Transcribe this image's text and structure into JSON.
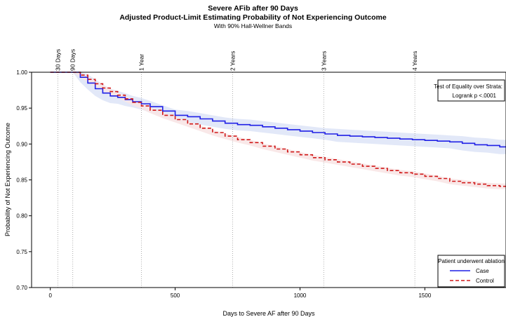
{
  "chart_data": {
    "type": "line",
    "title": "Severe AFib after 90 Days",
    "subtitle": "Adjusted Product-Limit Estimating Probability of Not Experiencing Outcome",
    "subtitle2": "With 90% Hall-Wellner Bands",
    "xlabel": "Days to Severe AF after 90 Days",
    "ylabel": "Probability of Not Experiencing Outcome",
    "xlim": [
      -75,
      1825
    ],
    "ylim": [
      0.7,
      1.0
    ],
    "x_ticks": [
      0,
      500,
      1000,
      1500
    ],
    "x_tick_labels": [
      "0",
      "500",
      "1000",
      "1500"
    ],
    "y_ticks": [
      0.7,
      0.75,
      0.8,
      0.85,
      0.9,
      0.95,
      1.0
    ],
    "y_tick_labels": [
      "0.70",
      "0.75",
      "0.80",
      "0.85",
      "0.90",
      "0.95",
      "1.00"
    ],
    "reference_lines": [
      {
        "x": 30,
        "label": "30 Days"
      },
      {
        "x": 90,
        "label": "90 Days"
      },
      {
        "x": 365,
        "label": "1 Year"
      },
      {
        "x": 730,
        "label": "2 Years"
      },
      {
        "x": 1095,
        "label": "3 Years"
      },
      {
        "x": 1460,
        "label": "4 Years"
      }
    ],
    "test_box": {
      "line1": "Test of Equality over Strata:",
      "line2": "Logrank p <.0001"
    },
    "legend": {
      "title": "Patient underwent ablation",
      "position": "bottom-right"
    },
    "grid": false,
    "series": [
      {
        "name": "Case",
        "color": "#1f1fe6",
        "dash": "solid",
        "band_color": "#dfe6f7",
        "x": [
          0,
          90,
          120,
          150,
          180,
          210,
          240,
          270,
          300,
          330,
          365,
          400,
          450,
          500,
          550,
          600,
          650,
          700,
          750,
          800,
          850,
          900,
          950,
          1000,
          1050,
          1100,
          1150,
          1200,
          1250,
          1300,
          1350,
          1400,
          1450,
          1500,
          1550,
          1600,
          1650,
          1700,
          1750,
          1800,
          1825
        ],
        "y": [
          1.0,
          1.0,
          0.993,
          0.985,
          0.977,
          0.971,
          0.967,
          0.965,
          0.962,
          0.959,
          0.956,
          0.952,
          0.946,
          0.94,
          0.938,
          0.935,
          0.932,
          0.929,
          0.927,
          0.926,
          0.924,
          0.922,
          0.92,
          0.918,
          0.916,
          0.914,
          0.912,
          0.911,
          0.91,
          0.909,
          0.908,
          0.907,
          0.906,
          0.905,
          0.904,
          0.903,
          0.901,
          0.899,
          0.898,
          0.896,
          0.896
        ],
        "upper": [
          1.0,
          1.0,
          1.0,
          0.997,
          0.99,
          0.983,
          0.977,
          0.974,
          0.971,
          0.967,
          0.964,
          0.96,
          0.954,
          0.948,
          0.946,
          0.943,
          0.94,
          0.937,
          0.935,
          0.934,
          0.932,
          0.93,
          0.928,
          0.926,
          0.924,
          0.922,
          0.921,
          0.92,
          0.919,
          0.918,
          0.917,
          0.916,
          0.915,
          0.914,
          0.913,
          0.912,
          0.911,
          0.909,
          0.908,
          0.906,
          0.906
        ],
        "lower": [
          1.0,
          1.0,
          0.986,
          0.976,
          0.967,
          0.961,
          0.957,
          0.956,
          0.953,
          0.951,
          0.948,
          0.944,
          0.938,
          0.932,
          0.93,
          0.927,
          0.924,
          0.921,
          0.919,
          0.918,
          0.916,
          0.914,
          0.912,
          0.91,
          0.908,
          0.906,
          0.903,
          0.902,
          0.901,
          0.9,
          0.899,
          0.898,
          0.897,
          0.896,
          0.895,
          0.894,
          0.891,
          0.889,
          0.888,
          0.886,
          0.886
        ]
      },
      {
        "name": "Control",
        "color": "#d01818",
        "dash": "dashed",
        "band_color": "#f8e6e6",
        "x": [
          0,
          90,
          120,
          150,
          180,
          210,
          240,
          270,
          300,
          330,
          365,
          400,
          450,
          500,
          550,
          600,
          650,
          700,
          750,
          800,
          850,
          900,
          950,
          1000,
          1050,
          1100,
          1150,
          1200,
          1250,
          1300,
          1350,
          1400,
          1450,
          1500,
          1550,
          1600,
          1650,
          1700,
          1750,
          1800,
          1825
        ],
        "y": [
          1.0,
          1.0,
          0.996,
          0.99,
          0.984,
          0.978,
          0.973,
          0.968,
          0.963,
          0.958,
          0.953,
          0.947,
          0.94,
          0.934,
          0.928,
          0.922,
          0.916,
          0.911,
          0.906,
          0.902,
          0.897,
          0.893,
          0.889,
          0.885,
          0.881,
          0.878,
          0.875,
          0.872,
          0.869,
          0.866,
          0.863,
          0.86,
          0.858,
          0.855,
          0.852,
          0.848,
          0.846,
          0.844,
          0.842,
          0.841,
          0.841
        ],
        "upper": [
          1.0,
          1.0,
          0.999,
          0.994,
          0.988,
          0.982,
          0.977,
          0.972,
          0.967,
          0.962,
          0.957,
          0.951,
          0.944,
          0.938,
          0.932,
          0.926,
          0.92,
          0.915,
          0.91,
          0.906,
          0.901,
          0.897,
          0.893,
          0.889,
          0.885,
          0.882,
          0.879,
          0.876,
          0.873,
          0.87,
          0.867,
          0.864,
          0.862,
          0.859,
          0.856,
          0.852,
          0.85,
          0.848,
          0.846,
          0.845,
          0.845
        ],
        "lower": [
          1.0,
          1.0,
          0.993,
          0.986,
          0.98,
          0.974,
          0.969,
          0.964,
          0.959,
          0.954,
          0.949,
          0.943,
          0.936,
          0.93,
          0.924,
          0.918,
          0.912,
          0.907,
          0.902,
          0.898,
          0.893,
          0.889,
          0.885,
          0.881,
          0.877,
          0.874,
          0.871,
          0.868,
          0.865,
          0.862,
          0.859,
          0.856,
          0.854,
          0.851,
          0.848,
          0.844,
          0.842,
          0.84,
          0.838,
          0.837,
          0.837
        ]
      }
    ]
  }
}
